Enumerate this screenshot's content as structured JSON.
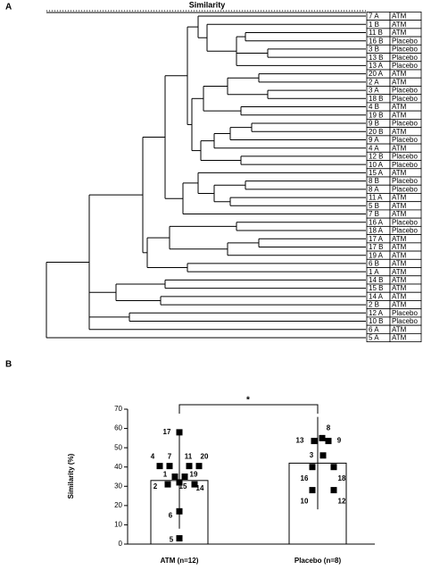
{
  "chart_data": [
    {
      "type": "dendrogram",
      "panel": "A",
      "title": "Similarity",
      "leaves": [
        [
          "7 A",
          "ATM"
        ],
        [
          "1 B",
          "ATM"
        ],
        [
          "11 B",
          "ATM"
        ],
        [
          "16 B",
          "Placebo"
        ],
        [
          "3 B",
          "Placebo"
        ],
        [
          "13 B",
          "Placebo"
        ],
        [
          "13 A",
          "Placebo"
        ],
        [
          "20 A",
          "ATM"
        ],
        [
          "2 A",
          "ATM"
        ],
        [
          "3 A",
          "Placebo"
        ],
        [
          "18 B",
          "Placebo"
        ],
        [
          "4 B",
          "ATM"
        ],
        [
          "19 B",
          "ATM"
        ],
        [
          "9 B",
          "Placebo"
        ],
        [
          "20 B",
          "ATM"
        ],
        [
          "9 A",
          "Placebo"
        ],
        [
          "4 A",
          "ATM"
        ],
        [
          "12 B",
          "Placebo"
        ],
        [
          "10 A",
          "Placebo"
        ],
        [
          "15 A",
          "ATM"
        ],
        [
          "8 B",
          "Placebo"
        ],
        [
          "8 A",
          "Placebo"
        ],
        [
          "11 A",
          "ATM"
        ],
        [
          "5 B",
          "ATM"
        ],
        [
          "7 B",
          "ATM"
        ],
        [
          "16 A",
          "Placebo"
        ],
        [
          "18 A",
          "Placebo"
        ],
        [
          "17 A",
          "ATM"
        ],
        [
          "17 B",
          "ATM"
        ],
        [
          "19 A",
          "ATM"
        ],
        [
          "6 B",
          "ATM"
        ],
        [
          "1 A",
          "ATM"
        ],
        [
          "14 B",
          "ATM"
        ],
        [
          "15 B",
          "ATM"
        ],
        [
          "14 A",
          "ATM"
        ],
        [
          "2 B",
          "ATM"
        ],
        [
          "12 A",
          "Placebo"
        ],
        [
          "10 B",
          "Placebo"
        ],
        [
          "6 A",
          "ATM"
        ],
        [
          "5 A",
          "ATM"
        ]
      ]
    },
    {
      "type": "bar",
      "panel": "B",
      "ylabel": "Similarity (%)",
      "categories": [
        "ATM (n=12)",
        "Placebo (n=8)"
      ],
      "values": [
        33,
        42
      ],
      "errors": [
        25,
        24
      ],
      "ylim": [
        0,
        70
      ],
      "yticks": [
        0,
        10,
        20,
        30,
        40,
        50,
        60,
        70
      ],
      "significance": "*",
      "point_labels": [
        [
          "17",
          "4",
          "7",
          "11",
          "20",
          "1",
          "19",
          "2",
          "15",
          "14",
          "6",
          "5"
        ],
        [
          "8",
          "13",
          "9",
          "3",
          "16",
          "18",
          "10",
          "12"
        ]
      ],
      "point_values": [
        [
          58,
          40.5,
          40.5,
          40.5,
          40.5,
          35,
          35,
          31,
          32,
          31,
          17,
          3
        ],
        [
          55,
          53.5,
          53.5,
          46,
          40,
          40,
          28,
          28
        ]
      ]
    }
  ]
}
